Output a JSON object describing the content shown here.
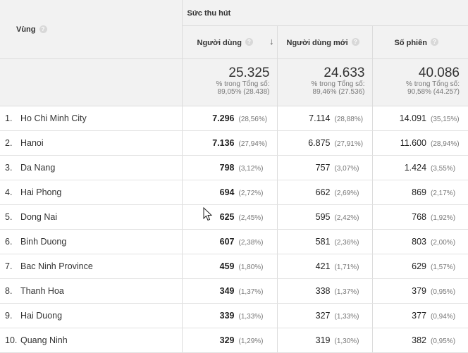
{
  "header": {
    "region_label": "Vùng",
    "group_label": "Sức thu hút",
    "col_users": "Người dùng",
    "col_new_users": "Người dùng mới",
    "col_sessions": "Số phiên"
  },
  "totals": {
    "users": {
      "value": "25.325",
      "line1": "% trong Tổng số:",
      "line2": "89,05% (28.438)"
    },
    "new_users": {
      "value": "24.633",
      "line1": "% trong Tổng số:",
      "line2": "89,46% (27.536)"
    },
    "sessions": {
      "value": "40.086",
      "line1": "% trong Tổng số:",
      "line2": "90,58% (44.257)"
    }
  },
  "rows": [
    {
      "idx": "1.",
      "region": "Ho Chi Minh City",
      "users": "7.296",
      "users_pct": "(28,56%)",
      "new": "7.114",
      "new_pct": "(28,88%)",
      "sess": "14.091",
      "sess_pct": "(35,15%)"
    },
    {
      "idx": "2.",
      "region": "Hanoi",
      "users": "7.136",
      "users_pct": "(27,94%)",
      "new": "6.875",
      "new_pct": "(27,91%)",
      "sess": "11.600",
      "sess_pct": "(28,94%)"
    },
    {
      "idx": "3.",
      "region": "Da Nang",
      "users": "798",
      "users_pct": "(3,12%)",
      "new": "757",
      "new_pct": "(3,07%)",
      "sess": "1.424",
      "sess_pct": "(3,55%)"
    },
    {
      "idx": "4.",
      "region": "Hai Phong",
      "users": "694",
      "users_pct": "(2,72%)",
      "new": "662",
      "new_pct": "(2,69%)",
      "sess": "869",
      "sess_pct": "(2,17%)"
    },
    {
      "idx": "5.",
      "region": "Dong Nai",
      "users": "625",
      "users_pct": "(2,45%)",
      "new": "595",
      "new_pct": "(2,42%)",
      "sess": "768",
      "sess_pct": "(1,92%)"
    },
    {
      "idx": "6.",
      "region": "Binh Duong",
      "users": "607",
      "users_pct": "(2,38%)",
      "new": "581",
      "new_pct": "(2,36%)",
      "sess": "803",
      "sess_pct": "(2,00%)"
    },
    {
      "idx": "7.",
      "region": "Bac Ninh Province",
      "users": "459",
      "users_pct": "(1,80%)",
      "new": "421",
      "new_pct": "(1,71%)",
      "sess": "629",
      "sess_pct": "(1,57%)"
    },
    {
      "idx": "8.",
      "region": "Thanh Hoa",
      "users": "349",
      "users_pct": "(1,37%)",
      "new": "338",
      "new_pct": "(1,37%)",
      "sess": "379",
      "sess_pct": "(0,95%)"
    },
    {
      "idx": "9.",
      "region": "Hai Duong",
      "users": "339",
      "users_pct": "(1,33%)",
      "new": "327",
      "new_pct": "(1,33%)",
      "sess": "377",
      "sess_pct": "(0,94%)"
    },
    {
      "idx": "10.",
      "region": "Quang Ninh",
      "users": "329",
      "users_pct": "(1,29%)",
      "new": "319",
      "new_pct": "(1,30%)",
      "sess": "382",
      "sess_pct": "(0,95%)"
    }
  ],
  "icons": {
    "help": "help-icon",
    "sort": "arrow-down-icon",
    "cursor": "mouse-cursor-icon"
  }
}
